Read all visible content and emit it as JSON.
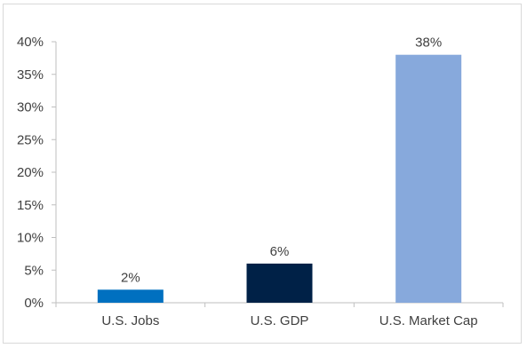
{
  "chart_data": {
    "type": "bar",
    "categories": [
      "U.S. Jobs",
      "U.S. GDP",
      "U.S. Market Cap"
    ],
    "values": [
      2,
      6,
      38
    ],
    "data_labels": [
      "2%",
      "6%",
      "38%"
    ],
    "bar_colors": [
      "#0070c0",
      "#002147",
      "#87a9dc"
    ],
    "title": "",
    "xlabel": "",
    "ylabel": "",
    "ylim": [
      0,
      40
    ],
    "yticks": [
      0,
      5,
      10,
      15,
      20,
      25,
      30,
      35,
      40
    ],
    "ytick_labels": [
      "0%",
      "5%",
      "10%",
      "15%",
      "20%",
      "25%",
      "30%",
      "35%",
      "40%"
    ],
    "grid": false,
    "legend": "none"
  }
}
